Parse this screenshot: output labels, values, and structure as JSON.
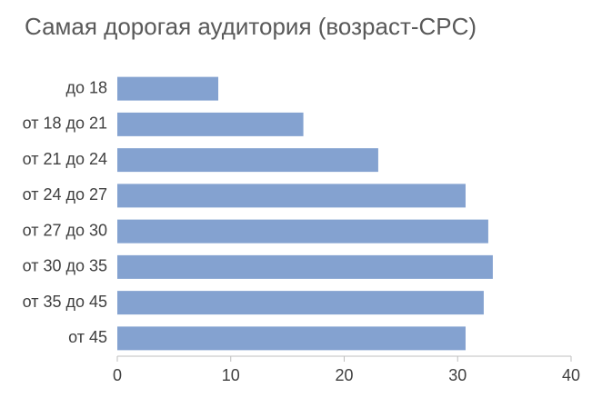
{
  "chart_data": {
    "type": "barh",
    "title": "Самая дорогая аудитория (возраст-CPC)",
    "categories": [
      "до 18",
      "от 18 до 21",
      "от 21 до 24",
      "от 24 до 27",
      "от 27 до 30",
      "от 30 до 35",
      "от 35 до 45",
      "от 45"
    ],
    "values": [
      8.9,
      16.4,
      23.0,
      30.7,
      32.7,
      33.1,
      32.3,
      30.7
    ],
    "color": "#84a2d0",
    "xlim": [
      0,
      40
    ],
    "xticks": [
      0,
      10,
      20,
      30,
      40
    ],
    "grid": false
  }
}
